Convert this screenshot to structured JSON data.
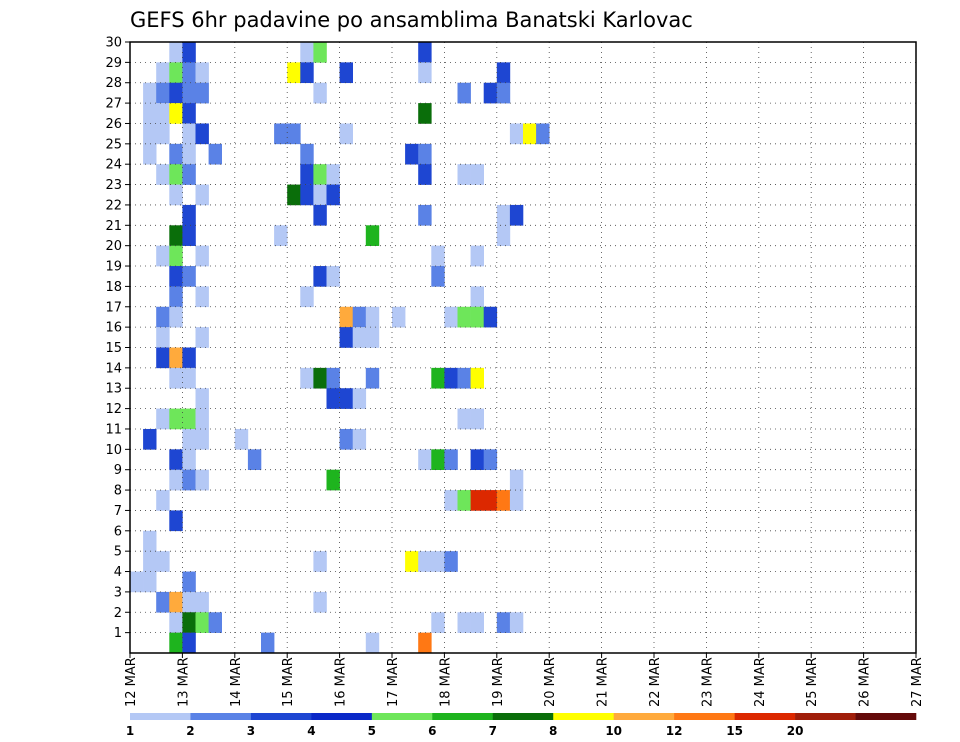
{
  "chart_data": {
    "type": "heatmap",
    "title": "GEFS 6hr padavine po ansamblima Banatski Karlovac",
    "xlabel": "",
    "ylabel": "",
    "x_ticks": [
      "12 MAR",
      "13 MAR",
      "14 MAR",
      "15 MAR",
      "16 MAR",
      "17 MAR",
      "18 MAR",
      "19 MAR",
      "20 MAR",
      "21 MAR",
      "22 MAR",
      "23 MAR",
      "24 MAR",
      "25 MAR",
      "26 MAR",
      "27 MAR"
    ],
    "x_range": [
      0,
      60
    ],
    "x_unit": "6-hour steps from 12 MAR 00Z",
    "y_ticks": [
      1,
      2,
      3,
      4,
      5,
      6,
      7,
      8,
      9,
      10,
      11,
      12,
      13,
      14,
      15,
      16,
      17,
      18,
      19,
      20,
      21,
      22,
      23,
      24,
      25,
      26,
      27,
      28,
      29,
      30
    ],
    "y_range": [
      0,
      30
    ],
    "grid": true,
    "colorbar": {
      "labels": [
        "1",
        "2",
        "3",
        "4",
        "5",
        "6",
        "7",
        "8",
        "10",
        "12",
        "15",
        "20"
      ],
      "colors": [
        "#b4c8f5",
        "#5a82e6",
        "#1e46d2",
        "#0a28c8",
        "#6ee65a",
        "#1eb41e",
        "#0a6e0a",
        "#ffff00",
        "#ffaa3c",
        "#ff7814",
        "#dc2800",
        "#a01e0a",
        "#640a0a"
      ]
    },
    "cells": [
      [
        3,
        30,
        0
      ],
      [
        4,
        30,
        2
      ],
      [
        13,
        30,
        0
      ],
      [
        14,
        30,
        4
      ],
      [
        22,
        30,
        2
      ],
      [
        2,
        29,
        0
      ],
      [
        3,
        29,
        4
      ],
      [
        4,
        29,
        1
      ],
      [
        5,
        29,
        0
      ],
      [
        12,
        29,
        7
      ],
      [
        13,
        29,
        2
      ],
      [
        16,
        29,
        2
      ],
      [
        22,
        29,
        0
      ],
      [
        28,
        29,
        2
      ],
      [
        1,
        28,
        0
      ],
      [
        2,
        28,
        1
      ],
      [
        3,
        28,
        2
      ],
      [
        4,
        28,
        1
      ],
      [
        5,
        28,
        1
      ],
      [
        14,
        28,
        0
      ],
      [
        25,
        28,
        1
      ],
      [
        27,
        28,
        2
      ],
      [
        28,
        28,
        1
      ],
      [
        1,
        27,
        0
      ],
      [
        2,
        27,
        0
      ],
      [
        3,
        27,
        7
      ],
      [
        4,
        27,
        2
      ],
      [
        22,
        27,
        6
      ],
      [
        1,
        26,
        0
      ],
      [
        2,
        26,
        0
      ],
      [
        4,
        26,
        0
      ],
      [
        5,
        26,
        2
      ],
      [
        11,
        26,
        1
      ],
      [
        12,
        26,
        1
      ],
      [
        16,
        26,
        0
      ],
      [
        29,
        26,
        0
      ],
      [
        30,
        26,
        7
      ],
      [
        31,
        26,
        1
      ],
      [
        1,
        25,
        0
      ],
      [
        3,
        25,
        1
      ],
      [
        4,
        25,
        0
      ],
      [
        6,
        25,
        1
      ],
      [
        13,
        25,
        1
      ],
      [
        21,
        25,
        2
      ],
      [
        22,
        25,
        1
      ],
      [
        2,
        24,
        0
      ],
      [
        3,
        24,
        4
      ],
      [
        4,
        24,
        1
      ],
      [
        13,
        24,
        2
      ],
      [
        14,
        24,
        4
      ],
      [
        15,
        24,
        0
      ],
      [
        22,
        24,
        2
      ],
      [
        25,
        24,
        0
      ],
      [
        26,
        24,
        0
      ],
      [
        3,
        23,
        0
      ],
      [
        5,
        23,
        0
      ],
      [
        12,
        23,
        6
      ],
      [
        13,
        23,
        2
      ],
      [
        14,
        23,
        0
      ],
      [
        15,
        23,
        2
      ],
      [
        4,
        22,
        2
      ],
      [
        14,
        22,
        2
      ],
      [
        22,
        22,
        1
      ],
      [
        28,
        22,
        0
      ],
      [
        29,
        22,
        2
      ],
      [
        3,
        21,
        6
      ],
      [
        4,
        21,
        2
      ],
      [
        11,
        21,
        0
      ],
      [
        18,
        21,
        5
      ],
      [
        28,
        21,
        0
      ],
      [
        2,
        20,
        0
      ],
      [
        3,
        20,
        4
      ],
      [
        5,
        20,
        0
      ],
      [
        23,
        20,
        0
      ],
      [
        26,
        20,
        0
      ],
      [
        3,
        19,
        2
      ],
      [
        4,
        19,
        1
      ],
      [
        14,
        19,
        2
      ],
      [
        15,
        19,
        0
      ],
      [
        23,
        19,
        1
      ],
      [
        3,
        18,
        1
      ],
      [
        5,
        18,
        0
      ],
      [
        13,
        18,
        0
      ],
      [
        26,
        18,
        0
      ],
      [
        2,
        17,
        1
      ],
      [
        3,
        17,
        0
      ],
      [
        16,
        17,
        8
      ],
      [
        17,
        17,
        1
      ],
      [
        18,
        17,
        0
      ],
      [
        20,
        17,
        0
      ],
      [
        24,
        17,
        0
      ],
      [
        25,
        17,
        4
      ],
      [
        26,
        17,
        4
      ],
      [
        27,
        17,
        2
      ],
      [
        2,
        16,
        0
      ],
      [
        5,
        16,
        0
      ],
      [
        16,
        16,
        2
      ],
      [
        17,
        16,
        0
      ],
      [
        18,
        16,
        0
      ],
      [
        2,
        15,
        2
      ],
      [
        3,
        15,
        8
      ],
      [
        4,
        15,
        2
      ],
      [
        3,
        14,
        0
      ],
      [
        4,
        14,
        0
      ],
      [
        13,
        14,
        0
      ],
      [
        14,
        14,
        6
      ],
      [
        15,
        14,
        1
      ],
      [
        18,
        14,
        1
      ],
      [
        23,
        14,
        5
      ],
      [
        24,
        14,
        2
      ],
      [
        25,
        14,
        1
      ],
      [
        26,
        14,
        7
      ],
      [
        5,
        13,
        0
      ],
      [
        15,
        13,
        2
      ],
      [
        16,
        13,
        2
      ],
      [
        17,
        13,
        0
      ],
      [
        2,
        12,
        0
      ],
      [
        3,
        12,
        4
      ],
      [
        4,
        12,
        4
      ],
      [
        5,
        12,
        0
      ],
      [
        25,
        12,
        0
      ],
      [
        26,
        12,
        0
      ],
      [
        1,
        11,
        2
      ],
      [
        4,
        11,
        0
      ],
      [
        5,
        11,
        0
      ],
      [
        8,
        11,
        0
      ],
      [
        16,
        11,
        1
      ],
      [
        17,
        11,
        0
      ],
      [
        3,
        10,
        2
      ],
      [
        4,
        10,
        0
      ],
      [
        9,
        10,
        1
      ],
      [
        22,
        10,
        0
      ],
      [
        23,
        10,
        5
      ],
      [
        24,
        10,
        1
      ],
      [
        26,
        10,
        2
      ],
      [
        27,
        10,
        1
      ],
      [
        3,
        9,
        0
      ],
      [
        4,
        9,
        1
      ],
      [
        5,
        9,
        0
      ],
      [
        15,
        9,
        5
      ],
      [
        29,
        9,
        0
      ],
      [
        2,
        8,
        0
      ],
      [
        24,
        8,
        0
      ],
      [
        25,
        8,
        4
      ],
      [
        26,
        8,
        10
      ],
      [
        27,
        8,
        10
      ],
      [
        28,
        8,
        9
      ],
      [
        29,
        8,
        0
      ],
      [
        3,
        7,
        2
      ],
      [
        1,
        6,
        0
      ],
      [
        1,
        5,
        0
      ],
      [
        2,
        5,
        0
      ],
      [
        14,
        5,
        0
      ],
      [
        21,
        5,
        7
      ],
      [
        22,
        5,
        0
      ],
      [
        23,
        5,
        0
      ],
      [
        24,
        5,
        1
      ],
      [
        0,
        4,
        0
      ],
      [
        1,
        4,
        0
      ],
      [
        4,
        4,
        1
      ],
      [
        2,
        3,
        1
      ],
      [
        3,
        3,
        8
      ],
      [
        4,
        3,
        0
      ],
      [
        5,
        3,
        0
      ],
      [
        14,
        3,
        0
      ],
      [
        3,
        2,
        0
      ],
      [
        4,
        2,
        6
      ],
      [
        5,
        2,
        4
      ],
      [
        6,
        2,
        1
      ],
      [
        23,
        2,
        0
      ],
      [
        25,
        2,
        0
      ],
      [
        26,
        2,
        0
      ],
      [
        28,
        2,
        1
      ],
      [
        29,
        2,
        0
      ],
      [
        3,
        1,
        5
      ],
      [
        4,
        1,
        2
      ],
      [
        10,
        1,
        1
      ],
      [
        18,
        1,
        0
      ],
      [
        22,
        1,
        9
      ]
    ]
  }
}
